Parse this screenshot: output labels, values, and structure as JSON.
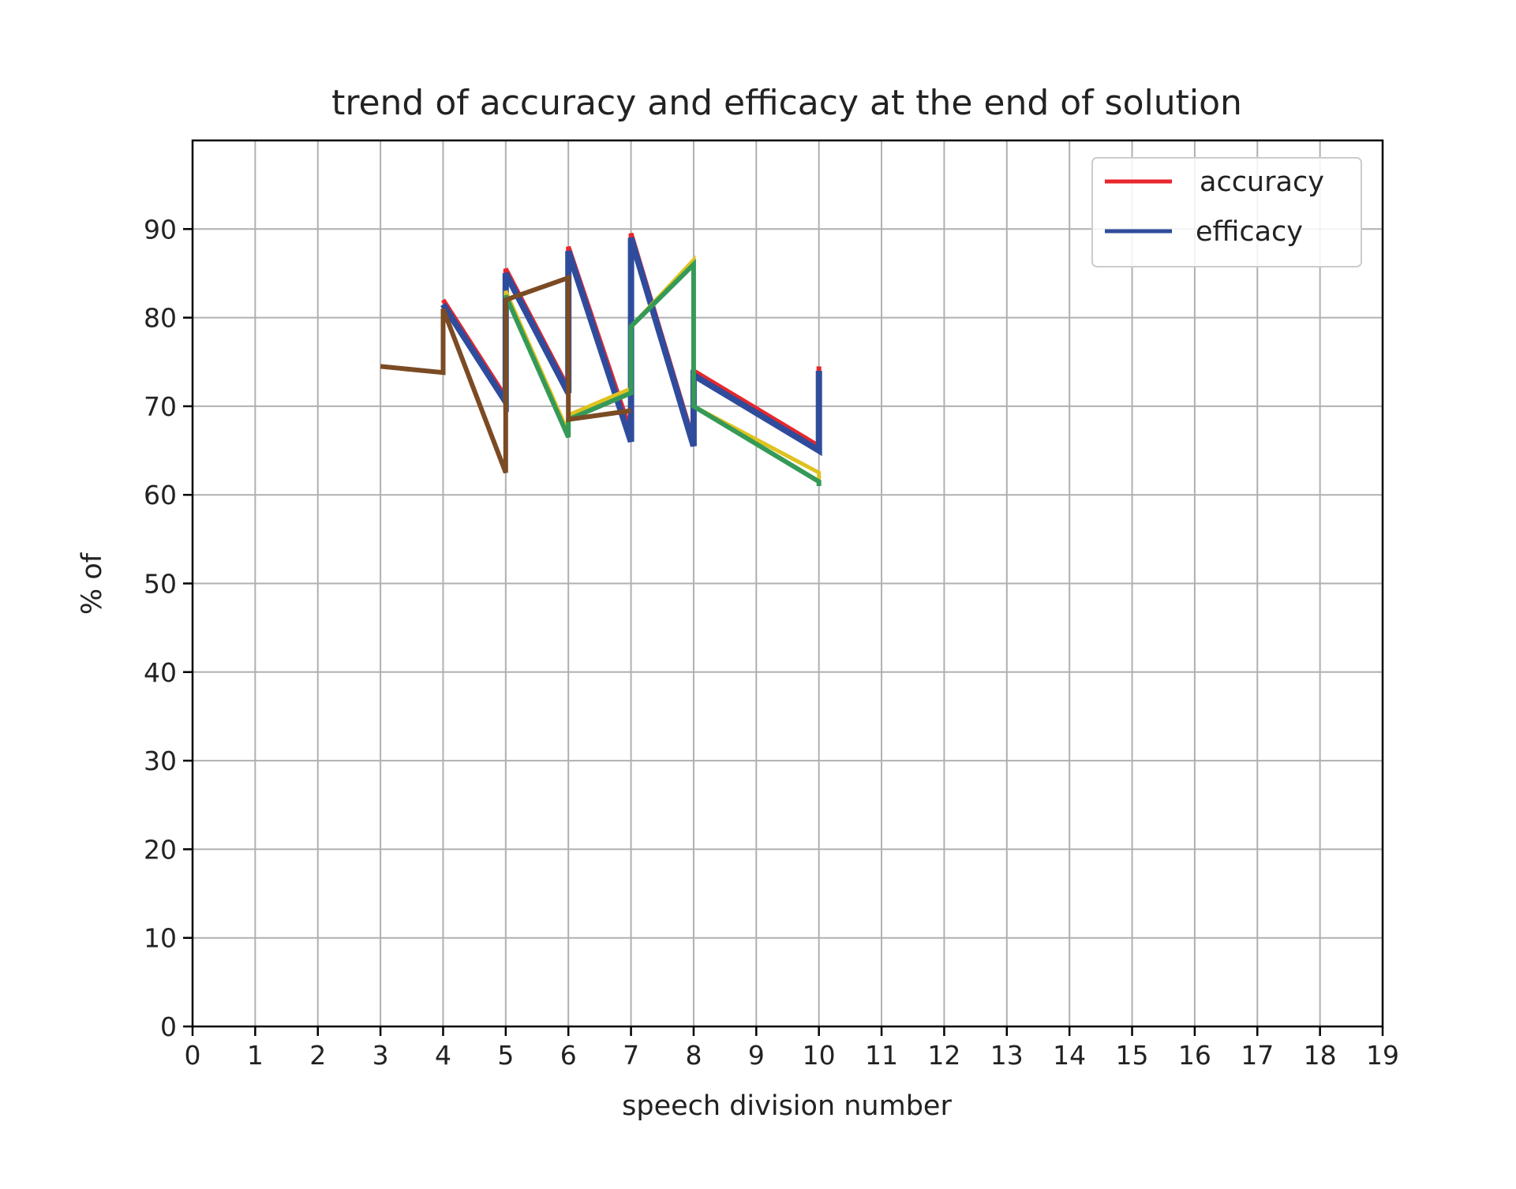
{
  "chart_data": {
    "type": "line",
    "title": "trend of accuracy and efficacy at the end of solution",
    "xlabel": "speech division number",
    "ylabel": "% of",
    "xlim": [
      0,
      19
    ],
    "ylim": [
      0,
      100
    ],
    "x_ticks": [
      "0",
      "1",
      "2",
      "3",
      "4",
      "5",
      "6",
      "7",
      "8",
      "9",
      "10",
      "11",
      "12",
      "13",
      "14",
      "15",
      "16",
      "17",
      "18",
      "19"
    ],
    "y_ticks": [
      "0",
      "10",
      "20",
      "30",
      "40",
      "50",
      "60",
      "70",
      "80",
      "90"
    ],
    "grid": true,
    "legend": {
      "position": "top-right",
      "entries": [
        {
          "label": "accuracy",
          "color": "#e8262b"
        },
        {
          "label": "efficacy",
          "color": "#2f4c9c"
        }
      ]
    },
    "series": [
      {
        "color": "#e8262b",
        "width": 6,
        "points": [
          [
            4,
            82
          ],
          [
            5,
            71
          ],
          [
            5,
            85.5
          ],
          [
            6,
            72
          ],
          [
            6,
            88
          ],
          [
            7,
            67
          ],
          [
            7,
            89.5
          ],
          [
            8,
            66
          ],
          [
            8,
            74
          ],
          [
            10,
            65.5
          ],
          [
            10,
            74.5
          ]
        ]
      },
      {
        "color": "#2f4c9c",
        "width": 8,
        "points": [
          [
            4,
            81.5
          ],
          [
            5,
            70.5
          ],
          [
            5,
            85
          ],
          [
            6,
            71.5
          ],
          [
            6,
            87.5
          ],
          [
            7,
            66
          ],
          [
            7,
            89
          ],
          [
            8,
            65.5
          ],
          [
            8,
            73.5
          ],
          [
            10,
            65
          ],
          [
            10,
            74
          ]
        ]
      },
      {
        "color": "#e0c21f",
        "width": 5,
        "points": [
          [
            5,
            70
          ],
          [
            5,
            83
          ],
          [
            6,
            67
          ],
          [
            6,
            69
          ],
          [
            7,
            72
          ],
          [
            7,
            79
          ],
          [
            8,
            86.5
          ],
          [
            8,
            70
          ],
          [
            10,
            62.5
          ],
          [
            10,
            61.5
          ]
        ]
      },
      {
        "color": "#359a57",
        "width": 6,
        "points": [
          [
            5,
            69.5
          ],
          [
            5,
            82.5
          ],
          [
            6,
            66.5
          ],
          [
            6,
            68.5
          ],
          [
            7,
            71.5
          ],
          [
            7,
            79
          ],
          [
            8,
            86
          ],
          [
            8,
            70
          ],
          [
            10,
            61.5
          ],
          [
            10,
            61
          ]
        ]
      },
      {
        "color": "#7b4b24",
        "width": 6,
        "points": [
          [
            3,
            74.5
          ],
          [
            4,
            73.8
          ],
          [
            4,
            81
          ],
          [
            5,
            62.5
          ],
          [
            5,
            82
          ],
          [
            6,
            84.5
          ],
          [
            6,
            68.5
          ],
          [
            7,
            69.5
          ]
        ]
      }
    ]
  }
}
